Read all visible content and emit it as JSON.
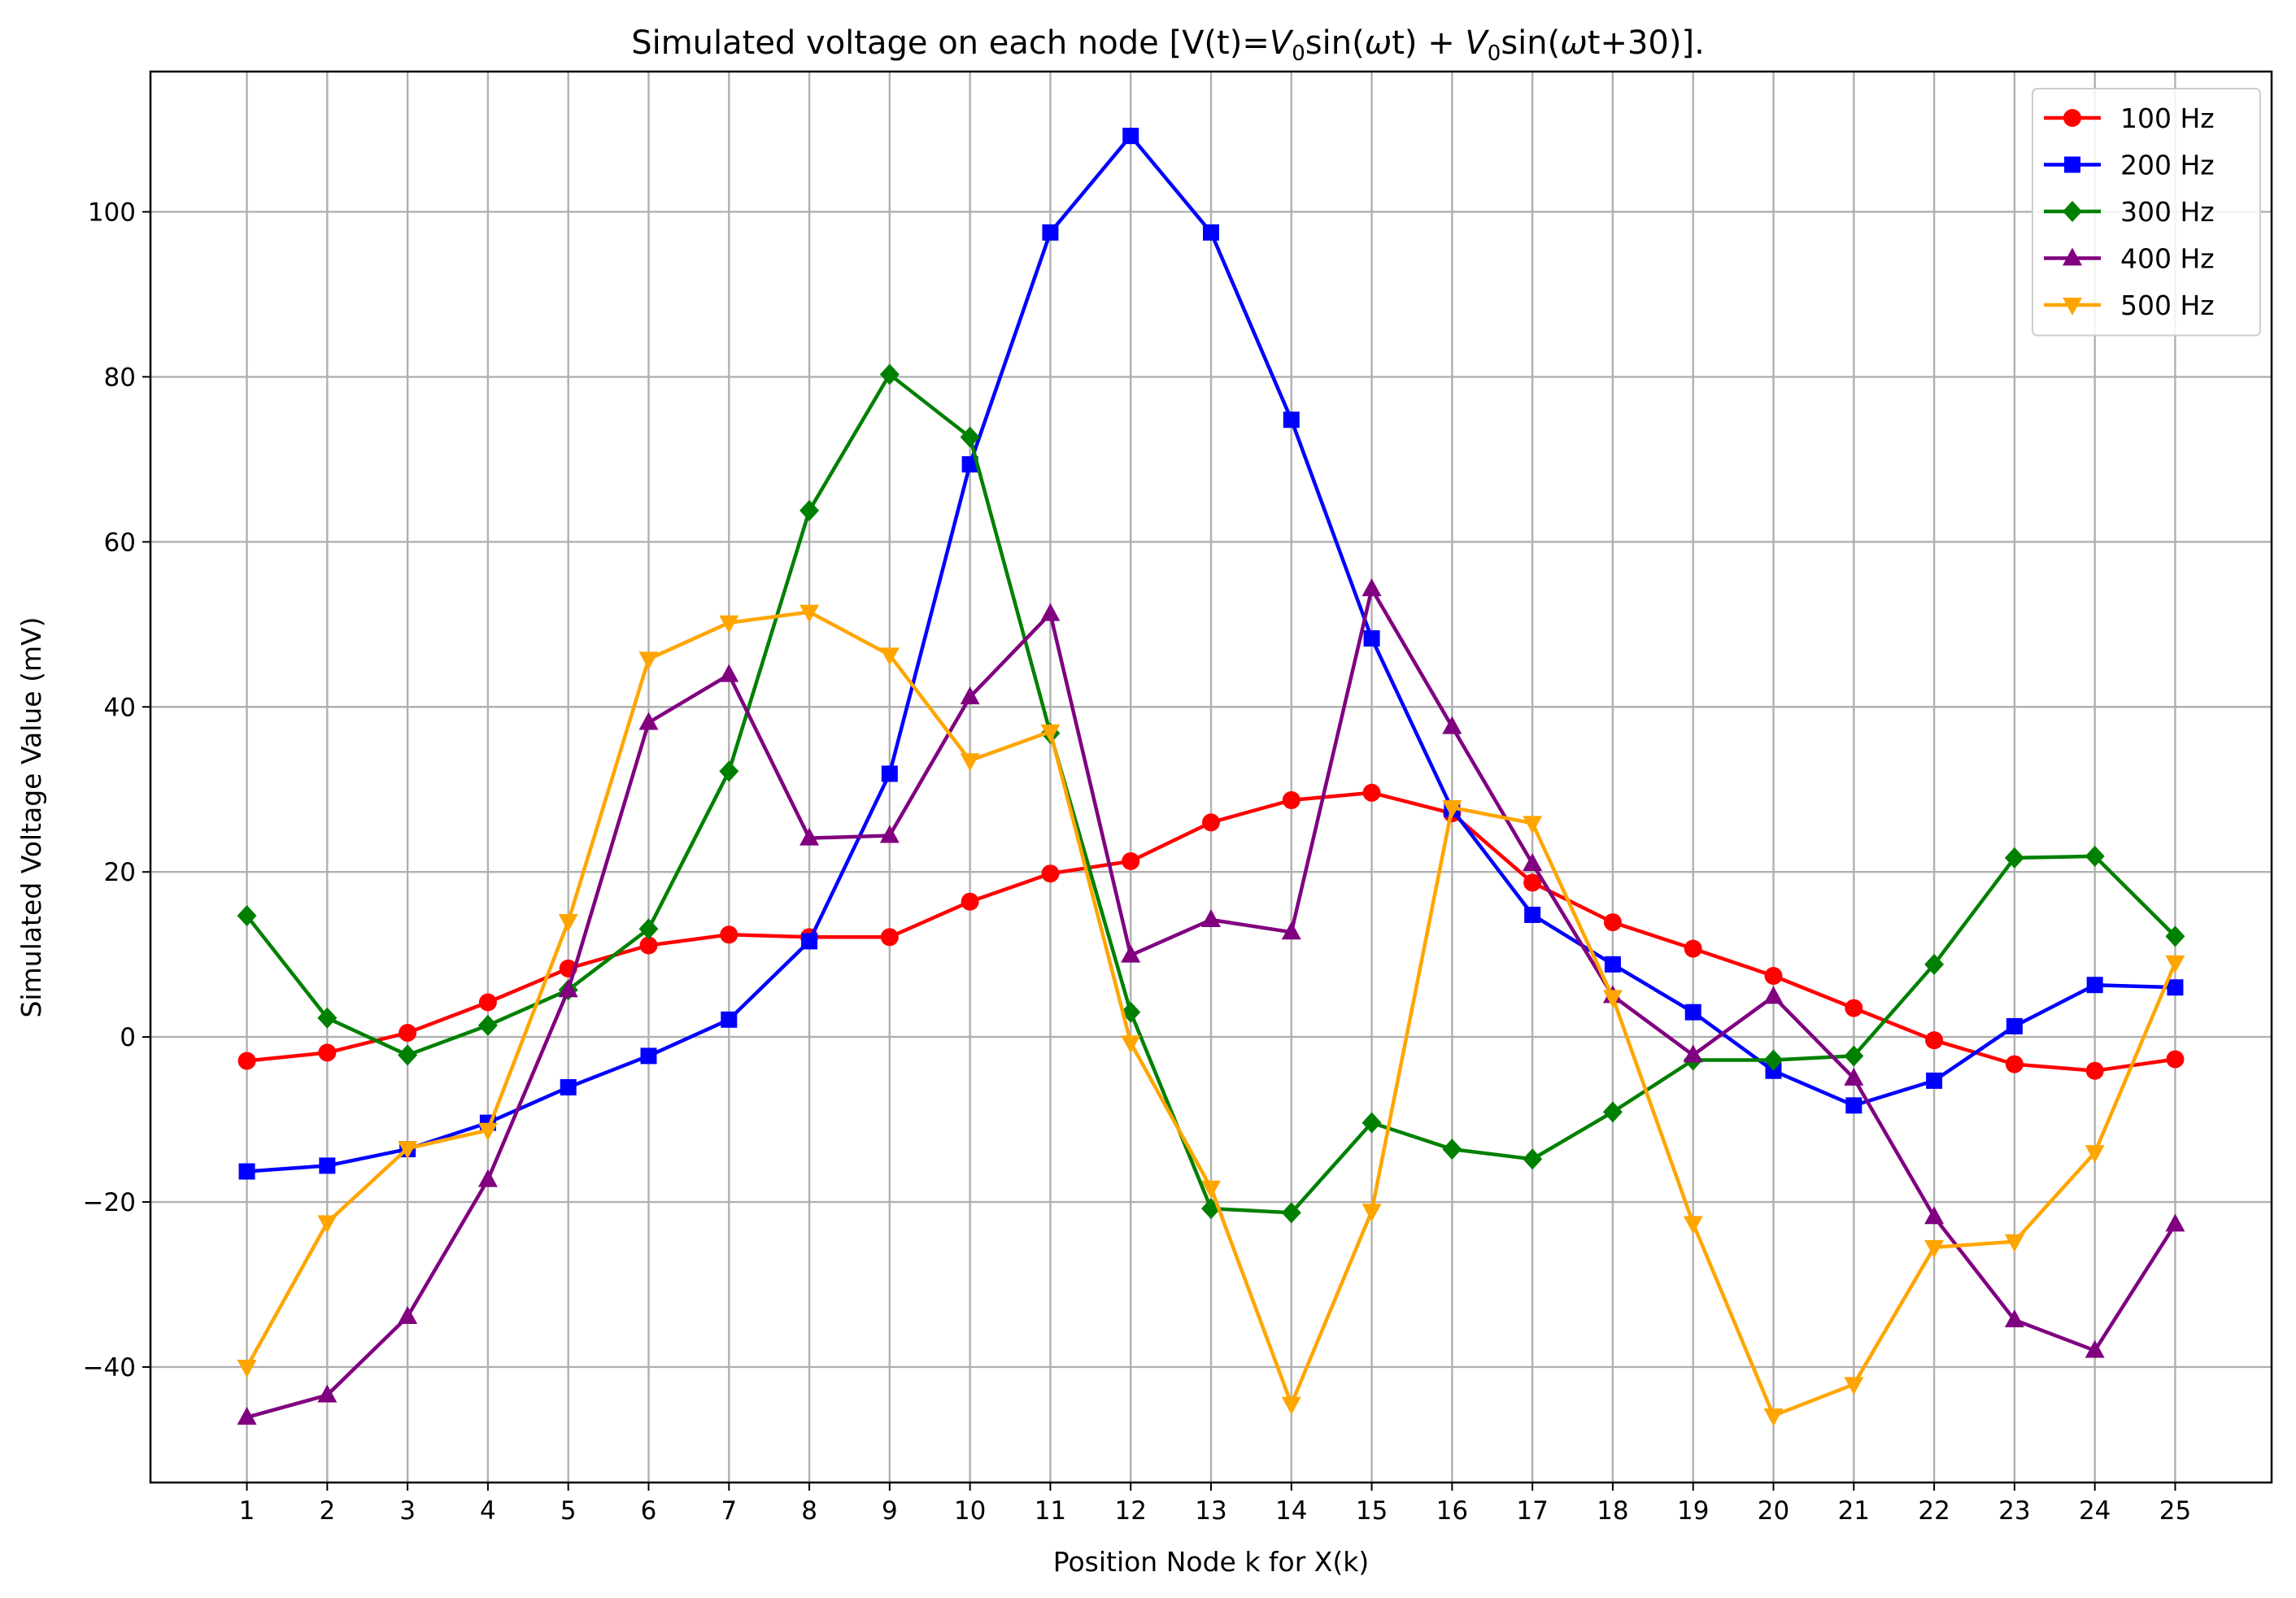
{
  "chart_data": {
    "type": "line",
    "title_main": "Simulated voltage on each node [V(t)=",
    "title_v1": "V",
    "title_sub1": "0",
    "title_mid": "sin(",
    "title_omega1": "ω",
    "title_after1": "t) + ",
    "title_v2": "V",
    "title_sub2": "0",
    "title_mid2": "sin(",
    "title_omega2": "ω",
    "title_end": "t+30)].",
    "xlabel": "Position Node k for X(k)",
    "ylabel": "Simulated Voltage Value (mV)",
    "xlim": [
      -0.2,
      26.2
    ],
    "ylim": [
      -54,
      117
    ],
    "xticks": [
      1,
      2,
      3,
      4,
      5,
      6,
      7,
      8,
      9,
      10,
      11,
      12,
      13,
      14,
      15,
      16,
      17,
      18,
      19,
      20,
      21,
      22,
      23,
      24,
      25
    ],
    "yticks": [
      -40,
      -20,
      0,
      20,
      40,
      60,
      80,
      100
    ],
    "grid": true,
    "legend_position": "top-right",
    "x": [
      1,
      2,
      3,
      4,
      5,
      6,
      7,
      8,
      9,
      10,
      11,
      12,
      13,
      14,
      15,
      16,
      17,
      18,
      19,
      20,
      21,
      22,
      23,
      24,
      25
    ],
    "series": [
      {
        "name": "100 Hz",
        "color": "#ff0000",
        "marker": "circle",
        "values": [
          -2.9,
          -1.9,
          0.5,
          4.2,
          8.3,
          11.1,
          12.4,
          12.1,
          12.1,
          16.4,
          19.8,
          21.3,
          26.0,
          28.7,
          29.6,
          27.1,
          18.7,
          13.9,
          10.7,
          7.4,
          3.5,
          -0.4,
          -3.3,
          -4.1,
          -2.7
        ]
      },
      {
        "name": "200 Hz",
        "color": "#0000ff",
        "marker": "square",
        "values": [
          -16.3,
          -15.6,
          -13.6,
          -10.4,
          -6.1,
          -2.3,
          2.1,
          11.6,
          31.9,
          69.4,
          97.5,
          109.2,
          97.5,
          74.8,
          48.3,
          27.6,
          14.8,
          8.8,
          3.0,
          -4.1,
          -8.3,
          -5.3,
          1.3,
          6.3,
          6.0
        ]
      },
      {
        "name": "300 Hz",
        "color": "#008000",
        "marker": "diamond",
        "values": [
          14.7,
          2.3,
          -2.2,
          1.4,
          5.7,
          13.1,
          32.2,
          63.8,
          80.3,
          72.7,
          36.8,
          3.0,
          -20.8,
          -21.3,
          -10.4,
          -13.6,
          -14.8,
          -9.1,
          -2.8,
          -2.8,
          -2.3,
          8.8,
          21.7,
          21.9,
          12.2
        ]
      },
      {
        "name": "400 Hz",
        "color": "#800080",
        "marker": "triangle-up",
        "values": [
          -46.1,
          -43.4,
          -33.9,
          -17.3,
          5.7,
          38.1,
          43.9,
          24.1,
          24.4,
          41.2,
          51.3,
          9.9,
          14.2,
          12.7,
          54.3,
          37.6,
          21.0,
          5.0,
          -2.2,
          4.9,
          -5.0,
          -21.8,
          -34.3,
          -38.0,
          -22.7
        ]
      },
      {
        "name": "500 Hz",
        "color": "#ffa500",
        "marker": "triangle-down",
        "values": [
          -40.0,
          -22.5,
          -13.5,
          -11.3,
          14.0,
          45.8,
          50.2,
          51.5,
          46.3,
          33.5,
          37.0,
          -0.7,
          -18.3,
          -44.5,
          -21.1,
          27.8,
          25.9,
          4.8,
          -22.6,
          -45.9,
          -42.1,
          -25.5,
          -24.8,
          -14.0,
          9.0
        ]
      }
    ]
  }
}
